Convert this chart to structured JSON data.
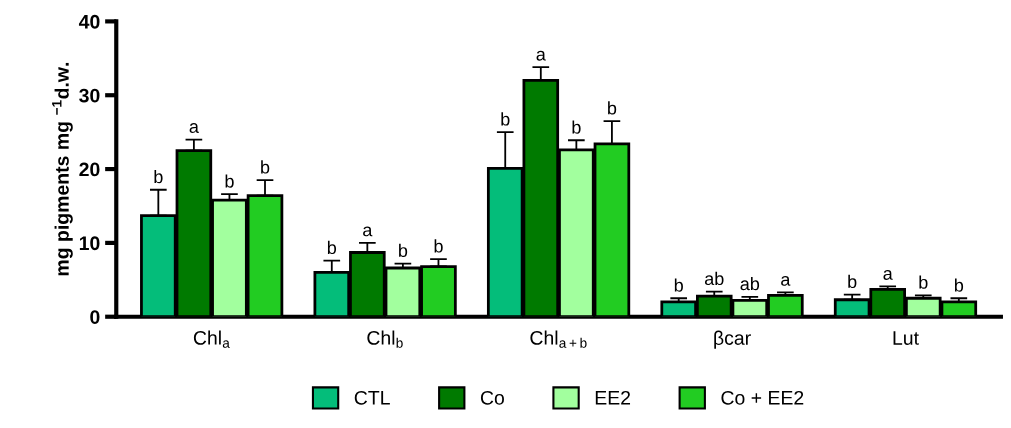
{
  "chart_data": {
    "type": "bar",
    "ylabel": "mg pigments mg $^{−1}$d.w.",
    "categories": [
      "Chl$_{a}$",
      "Chl$_{b}$",
      "Chl$_{a+b}$",
      "βcar",
      "Lut"
    ],
    "ylim": [
      0,
      40
    ],
    "yticks": [
      0,
      10,
      20,
      30,
      40
    ],
    "grid": false,
    "legend": "bottom",
    "series": [
      {
        "name": "CTL",
        "color": "#04bd7a",
        "values": [
          13.7,
          6.0,
          20.1,
          2.0,
          2.3
        ],
        "errors": [
          [
            13.7,
            17.2
          ],
          [
            6.0,
            7.6
          ],
          [
            20.1,
            25.0
          ],
          [
            2.0,
            2.5
          ],
          [
            2.3,
            3.0
          ]
        ],
        "value_labels": [
          "b",
          "b",
          "b",
          "b",
          "b"
        ]
      },
      {
        "name": "Co",
        "color": "#007a00",
        "values": [
          22.5,
          8.7,
          32.0,
          2.8,
          3.7
        ],
        "errors": [
          [
            22.5,
            24.0
          ],
          [
            8.7,
            10.0
          ],
          [
            32.0,
            33.8
          ],
          [
            2.8,
            3.4
          ],
          [
            3.7,
            4.1
          ]
        ],
        "value_labels": [
          "a",
          "a",
          "a",
          "ab",
          "a"
        ]
      },
      {
        "name": "EE2",
        "color": "#a2ff9e",
        "values": [
          15.8,
          6.6,
          22.6,
          2.2,
          2.5
        ],
        "errors": [
          [
            15.8,
            16.6
          ],
          [
            6.6,
            7.2
          ],
          [
            22.6,
            23.9
          ],
          [
            2.2,
            2.7
          ],
          [
            2.5,
            2.9
          ]
        ],
        "value_labels": [
          "b",
          "b",
          "b",
          "ab",
          "b"
        ]
      },
      {
        "name": "Co + EE2",
        "color": "#22cc22",
        "values": [
          16.4,
          6.8,
          23.4,
          2.9,
          2.0
        ],
        "errors": [
          [
            16.4,
            18.5
          ],
          [
            6.8,
            7.8
          ],
          [
            23.4,
            26.5
          ],
          [
            2.9,
            3.3
          ],
          [
            2.0,
            2.5
          ]
        ],
        "value_labels": [
          "b",
          "b",
          "b",
          "a",
          "b"
        ]
      }
    ]
  }
}
